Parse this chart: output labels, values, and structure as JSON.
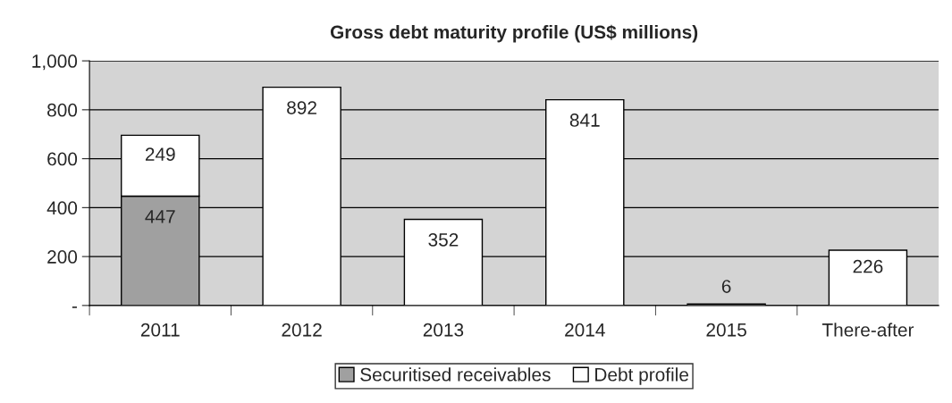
{
  "chart_data": {
    "type": "bar",
    "title": "Gross debt maturity profile (US$ millions)",
    "categories": [
      "2011",
      "2012",
      "2013",
      "2014",
      "2015",
      "There-after"
    ],
    "series": [
      {
        "name": "Securitised receivables",
        "color": "#a0a0a0",
        "values": [
          447,
          null,
          null,
          null,
          null,
          null
        ]
      },
      {
        "name": "Debt profile",
        "color": "#ffffff",
        "values": [
          249,
          892,
          352,
          841,
          6,
          226
        ]
      }
    ],
    "stacked": true,
    "data_labels": true,
    "ylim": [
      0,
      1000
    ],
    "yticks": [
      {
        "value": 0,
        "label": "-"
      },
      200,
      400,
      600,
      800,
      {
        "value": 1000,
        "label": "1,000"
      }
    ],
    "grid": "y",
    "legend": "bottom"
  }
}
